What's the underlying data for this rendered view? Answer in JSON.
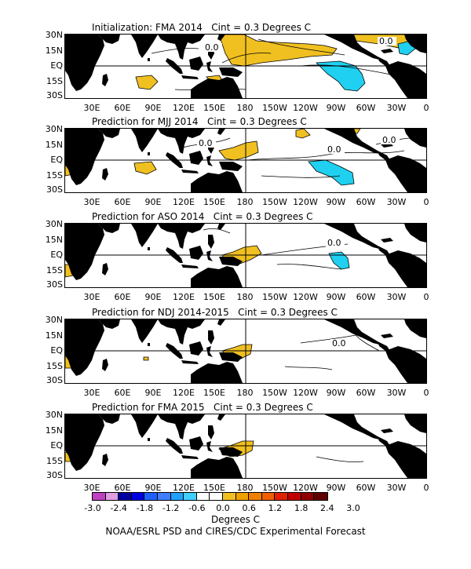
{
  "panels": [
    {
      "title": "Initialization: FMA 2014   Cint = 0.3 Degrees C"
    },
    {
      "title": "Prediction for MJJ 2014   Cint = 0.3 Degrees C"
    },
    {
      "title": "Prediction for ASO 2014   Cint = 0.3 Degrees C"
    },
    {
      "title": "Prediction for NDJ 2014-2015   Cint = 0.3 Degrees C"
    },
    {
      "title": "Prediction for FMA 2015   Cint = 0.3 Degrees C"
    }
  ],
  "lat_labels": [
    "30N",
    "15N",
    "EQ",
    "15S",
    "30S"
  ],
  "lon_labels": [
    "30E",
    "60E",
    "90E",
    "120E",
    "150E",
    "180",
    "150W",
    "120W",
    "90W",
    "60W",
    "30W",
    "0"
  ],
  "contour_label": "0.0",
  "colorbar": {
    "colors": [
      "#c040c0",
      "#e0a0e0",
      "#0000a0",
      "#0000e0",
      "#2060ff",
      "#4080ff",
      "#20a0ff",
      "#40d0ff",
      "#ffffff",
      "#ffffff",
      "#f0c020",
      "#f0a000",
      "#f08000",
      "#f06000",
      "#e02000",
      "#c00000",
      "#900000",
      "#600000"
    ],
    "tick_labels": [
      "-3.0",
      "-2.4",
      "-1.8",
      "-1.2",
      "-0.6",
      "0.0",
      "0.6",
      "1.2",
      "1.8",
      "2.4",
      "3.0"
    ]
  },
  "colors": {
    "warm": "#f0c020",
    "cool": "#20d0f0",
    "land": "#000000"
  },
  "units_label": "Degrees C",
  "credit": "NOAA/ESRL PSD and CIRES/CDC Experimental Forecast"
}
